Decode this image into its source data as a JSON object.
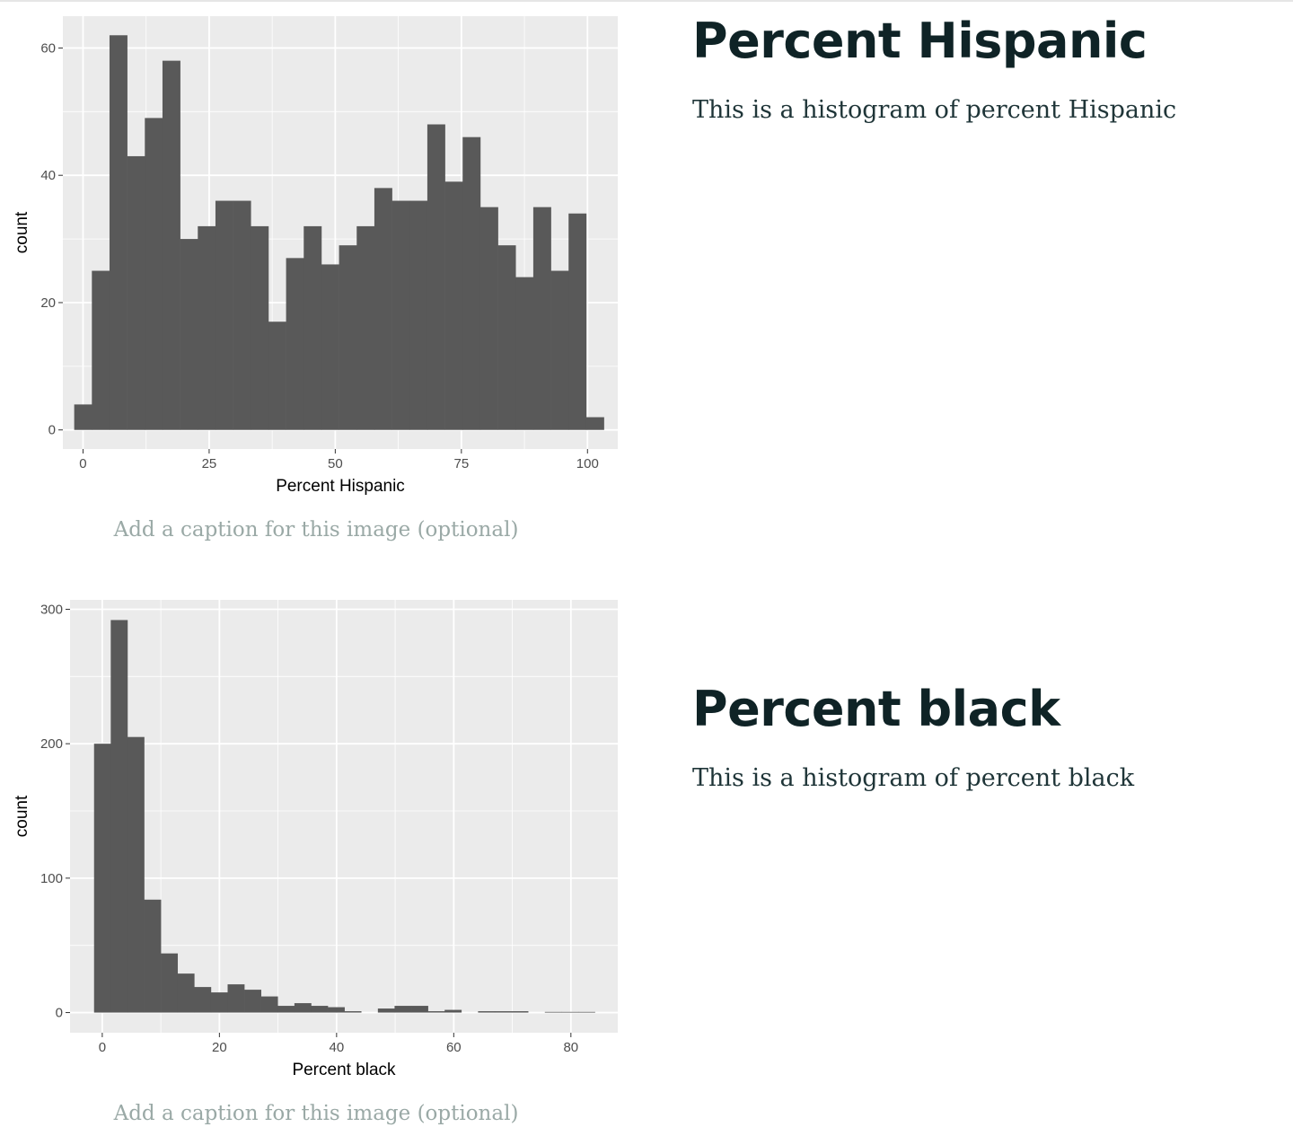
{
  "sections": [
    {
      "heading": "Percent Hispanic",
      "description": "This is a histogram of percent Hispanic",
      "caption_placeholder": "Add a caption for this image (optional)"
    },
    {
      "heading": "Percent black",
      "description": "This is a histogram of percent black",
      "caption_placeholder": "Add a caption for this image (optional)"
    }
  ],
  "chart_data": [
    {
      "type": "bar",
      "xlabel": "Percent Hispanic",
      "ylabel": "count",
      "xlim": [
        -4,
        106
      ],
      "ylim": [
        -3,
        65
      ],
      "x_ticks": [
        0,
        25,
        50,
        75,
        100
      ],
      "y_ticks": [
        0,
        20,
        40,
        60
      ],
      "bin_start": -1.75,
      "bin_width": 3.5,
      "values": [
        4,
        25,
        62,
        43,
        49,
        58,
        30,
        32,
        36,
        36,
        32,
        17,
        27,
        32,
        26,
        29,
        32,
        38,
        36,
        36,
        48,
        39,
        46,
        35,
        29,
        24,
        35,
        25,
        34,
        2
      ],
      "grid": true,
      "colors": {
        "panel": "#ebebeb",
        "grid": "#ffffff",
        "bar": "#595959",
        "tick_text": "#4d4d4d",
        "axis_title": "#000000"
      }
    },
    {
      "type": "bar",
      "xlabel": "Percent black",
      "ylabel": "count",
      "xlim": [
        -5.5,
        88
      ],
      "ylim": [
        -15,
        307
      ],
      "x_ticks": [
        0,
        20,
        40,
        60,
        80
      ],
      "y_ticks": [
        0,
        100,
        200,
        300
      ],
      "bin_start": -1.4,
      "bin_width": 2.85,
      "values": [
        200,
        292,
        205,
        84,
        44,
        29,
        19,
        15,
        21,
        17,
        12,
        5,
        7,
        5,
        4,
        1,
        0,
        3,
        5,
        5,
        1,
        2,
        0,
        1,
        1,
        1,
        0,
        0.5,
        0.5,
        0.5
      ],
      "grid": true,
      "colors": {
        "panel": "#ebebeb",
        "grid": "#ffffff",
        "bar": "#595959",
        "tick_text": "#4d4d4d",
        "axis_title": "#000000"
      }
    }
  ]
}
